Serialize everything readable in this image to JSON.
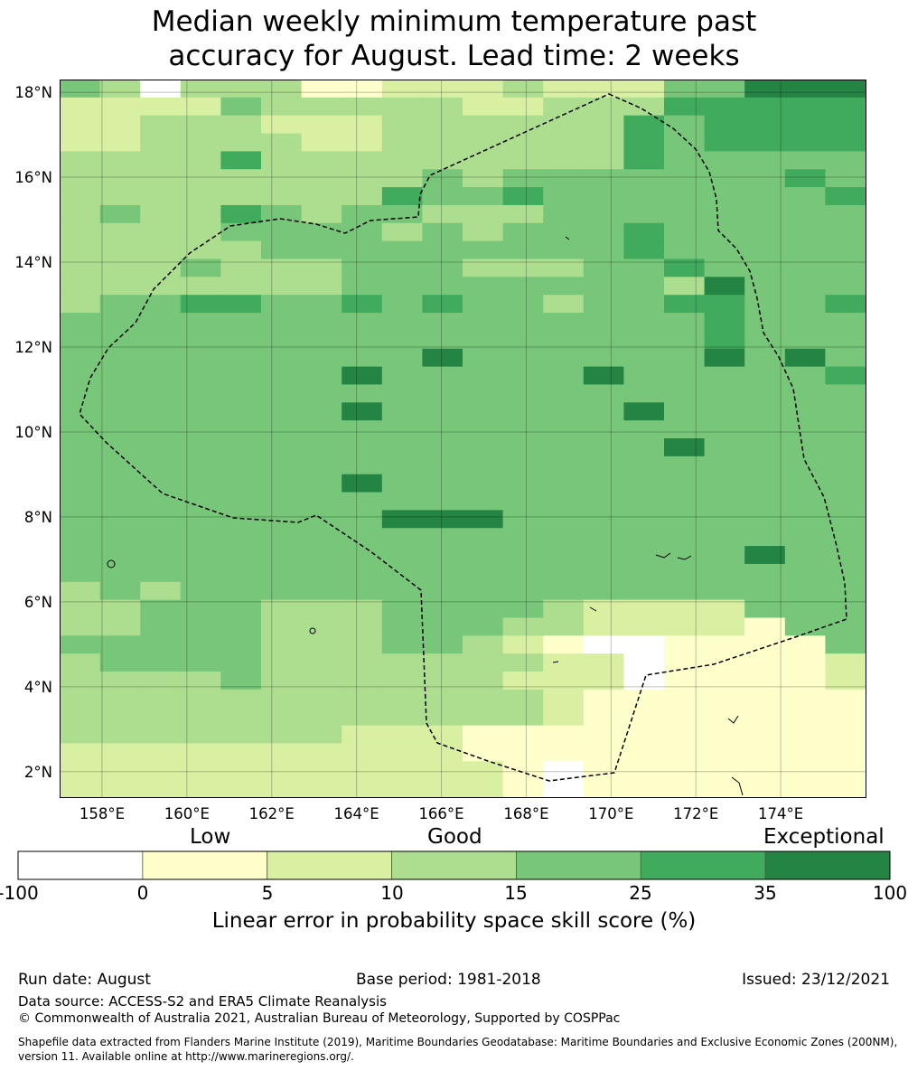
{
  "title_lines": [
    "Median weekly minimum temperature past",
    "accuracy for August. Lead time: 2 weeks"
  ],
  "map": {
    "lon_range": [
      157,
      176
    ],
    "lat_range": [
      1.4,
      18.3
    ],
    "lon_ticks": [
      "158°E",
      "160°E",
      "162°E",
      "164°E",
      "166°E",
      "168°E",
      "170°E",
      "172°E",
      "174°E"
    ],
    "lat_ticks": [
      "18°N",
      "16°N",
      "14°N",
      "12°N",
      "10°N",
      "8°N",
      "6°N",
      "4°N",
      "2°N"
    ],
    "grid": true,
    "boundary": "dashed exclusive economic zone outline",
    "grid_codes": [
      "43033311222322244666",
      "22224333332233355555",
      "22333222333333545555",
      "22333322333333545555",
      "33335333333333544444",
      "33333333343444444454",
      "33333333544544444445",
      "34335434433344444444",
      "33334444343444544444",
      "33333444444444544444",
      "33343334443334454444",
      "33333334444444436444",
      "34455445454434455445",
      "44444444444444445444",
      "44444444444444445444",
      "44444444464444446464",
      "44444446444446444445",
      "44444444444444444444",
      "44444446444444644444",
      "44444444444444444444",
      "44444444444444464444",
      "44444444444444444444",
      "44444446444444444444",
      "44444444444444444444",
      "44444444666444444444",
      "44444444444444444444",
      "44444444444444444644",
      "44444444444444444444",
      "34344444444444444444",
      "33444333444432222444",
      "33444333444332222144",
      "44444333443210011114",
      "34444333333322011112",
      "33334333333222011112",
      "33333333333321111111",
      "33333333333321111111",
      "33333332221111111111",
      "22222222221111111111",
      "22222222222101111111",
      "22222222222101111111"
    ]
  },
  "colorbar": {
    "category_labels": [
      "Low",
      "Good",
      "Exceptional"
    ],
    "ticks": [
      "-100",
      "0",
      "5",
      "10",
      "15",
      "25",
      "35",
      "100"
    ],
    "colors": [
      "#ffffff",
      "#ffffcc",
      "#d9f0a3",
      "#addd8e",
      "#78c679",
      "#41ab5d",
      "#238443"
    ],
    "title": "Linear error in probability space skill score (%)"
  },
  "footer": {
    "run_date": "Run date: August",
    "base_period": "Base period: 1981-2018",
    "issued": "Issued: 23/12/2021",
    "data_source": "Data source: ACCESS-S2 and ERA5 Climate Reanalysis",
    "copyright": "© Commonwealth of Australia 2021, Australian Bureau of Meteorology, Supported by COSPPac",
    "shapefile_line1": "Shapefile data extracted from Flanders Marine Institute (2019), Maritime Boundaries Geodatabase: Maritime Boundaries and Exclusive Economic Zones (200NM),",
    "shapefile_line2": "version 11. Available online at http://www.marineregions.org/."
  }
}
